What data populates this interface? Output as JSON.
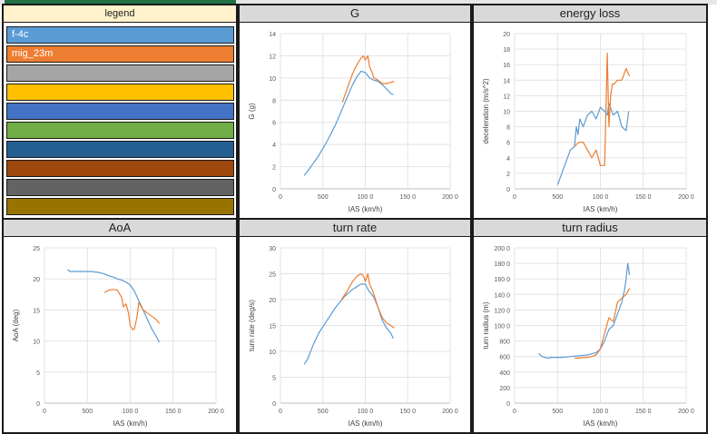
{
  "legend": {
    "title": "legend",
    "items": [
      {
        "label": "f-4c",
        "color": "#5b9bd5"
      },
      {
        "label": "mig_23m",
        "color": "#ed7d31"
      },
      {
        "label": "",
        "color": "#a5a5a5"
      },
      {
        "label": "",
        "color": "#ffc000"
      },
      {
        "label": "",
        "color": "#4472c4"
      },
      {
        "label": "",
        "color": "#70ad47"
      },
      {
        "label": "",
        "color": "#255e91"
      },
      {
        "label": "",
        "color": "#9e480e"
      },
      {
        "label": "",
        "color": "#636363"
      },
      {
        "label": "",
        "color": "#997300"
      }
    ]
  },
  "chart_data": [
    {
      "type": "line",
      "title": "G",
      "xlabel": "IAS (km/h)",
      "ylabel": "G (g)",
      "xlim": [
        0,
        2000
      ],
      "ylim": [
        0,
        14
      ],
      "xticks": [
        0,
        500,
        1000,
        1500,
        2000
      ],
      "xtick_labels": [
        "0",
        "500",
        "100 0",
        "150 0",
        "200 0"
      ],
      "yticks": [
        0,
        2,
        4,
        6,
        8,
        10,
        12,
        14
      ],
      "ytick_labels": [
        "0",
        "2",
        "4",
        "6",
        "8",
        "10",
        "12",
        "14"
      ],
      "grid": true,
      "series": [
        {
          "name": "f-4c",
          "color": "#5b9bd5",
          "x": [
            280,
            350,
            450,
            550,
            650,
            750,
            850,
            900,
            950,
            1000,
            1050,
            1100,
            1150,
            1200,
            1250,
            1300,
            1330
          ],
          "y": [
            1.2,
            1.9,
            3.0,
            4.3,
            5.8,
            7.6,
            9.4,
            10.1,
            10.6,
            10.5,
            10.0,
            9.8,
            9.7,
            9.4,
            9.0,
            8.6,
            8.5
          ]
        },
        {
          "name": "mig_23m",
          "color": "#ed7d31",
          "x": [
            730,
            780,
            850,
            900,
            950,
            980,
            1000,
            1030,
            1050,
            1080,
            1100,
            1150,
            1200,
            1250,
            1300,
            1340
          ],
          "y": [
            7.8,
            8.9,
            10.4,
            11.2,
            11.8,
            12.0,
            11.6,
            12.0,
            11.0,
            10.5,
            10.0,
            9.8,
            9.5,
            9.5,
            9.6,
            9.7
          ]
        }
      ]
    },
    {
      "type": "line",
      "title": "energy loss",
      "xlabel": "IAS (km/h)",
      "ylabel": "deceleration (m/s^2)",
      "xlim": [
        0,
        2000
      ],
      "ylim": [
        0,
        20
      ],
      "xticks": [
        0,
        500,
        1000,
        1500,
        2000
      ],
      "xtick_labels": [
        "0",
        "500",
        "100 0",
        "150 0",
        "200 0"
      ],
      "yticks": [
        0,
        2,
        4,
        6,
        8,
        10,
        12,
        14,
        16,
        18,
        20
      ],
      "ytick_labels": [
        "0",
        "2",
        "4",
        "6",
        "8",
        "10",
        "12",
        "14",
        "16",
        "18",
        "20"
      ],
      "grid": true,
      "series": [
        {
          "name": "f-4c",
          "color": "#5b9bd5",
          "x": [
            500,
            550,
            600,
            650,
            700,
            720,
            740,
            760,
            800,
            850,
            900,
            950,
            1000,
            1050,
            1080,
            1100,
            1150,
            1200,
            1250,
            1300,
            1330
          ],
          "y": [
            0.5,
            2.0,
            3.5,
            5.0,
            5.5,
            8.0,
            7.0,
            9.0,
            8.0,
            9.5,
            10.0,
            9.0,
            10.5,
            10.0,
            9.5,
            11.0,
            9.5,
            10.0,
            8.0,
            7.5,
            10.0
          ]
        },
        {
          "name": "mig_23m",
          "color": "#ed7d31",
          "x": [
            700,
            750,
            800,
            850,
            900,
            950,
            1000,
            1050,
            1080,
            1100,
            1120,
            1140,
            1160,
            1200,
            1250,
            1300,
            1340
          ],
          "y": [
            5.5,
            6.0,
            6.0,
            5.0,
            4.0,
            5.0,
            3.0,
            3.0,
            17.5,
            8.0,
            12.0,
            13.5,
            13.5,
            14.0,
            14.0,
            15.5,
            14.5
          ]
        }
      ]
    },
    {
      "type": "line",
      "title": "AoA",
      "xlabel": "IAS (km/h)",
      "ylabel": "AoA (deg)",
      "xlim": [
        0,
        2000
      ],
      "ylim": [
        0,
        25
      ],
      "xticks": [
        0,
        500,
        1000,
        1500,
        2000
      ],
      "xtick_labels": [
        "0",
        "500",
        "100 0",
        "150 0",
        "200 0"
      ],
      "yticks": [
        0,
        5,
        10,
        15,
        20,
        25
      ],
      "ytick_labels": [
        "0",
        "5",
        "10",
        "15",
        "20",
        "25"
      ],
      "grid": true,
      "series": [
        {
          "name": "f-4c",
          "color": "#5b9bd5",
          "x": [
            270,
            300,
            350,
            450,
            550,
            650,
            700,
            750,
            800,
            850,
            900,
            950,
            1000,
            1050,
            1100,
            1150,
            1200,
            1250,
            1300,
            1340
          ],
          "y": [
            21.5,
            21.2,
            21.2,
            21.2,
            21.2,
            21.0,
            20.8,
            20.5,
            20.3,
            20.0,
            19.8,
            19.5,
            19.0,
            18.0,
            16.5,
            15.0,
            13.5,
            12.0,
            10.8,
            9.8
          ]
        },
        {
          "name": "mig_23m",
          "color": "#ed7d31",
          "x": [
            700,
            750,
            800,
            850,
            900,
            920,
            950,
            980,
            1000,
            1030,
            1050,
            1080,
            1100,
            1150,
            1200,
            1250,
            1300,
            1340
          ],
          "y": [
            17.8,
            18.2,
            18.3,
            18.2,
            17.0,
            15.5,
            16.0,
            14.5,
            12.5,
            11.8,
            12.0,
            14.0,
            16.2,
            15.0,
            14.5,
            14.0,
            13.5,
            12.8
          ]
        }
      ]
    },
    {
      "type": "line",
      "title": "turn rate",
      "xlabel": "IAS (km/h)",
      "ylabel": "turn rate (deg/s)",
      "xlim": [
        0,
        2000
      ],
      "ylim": [
        0,
        30
      ],
      "xticks": [
        0,
        500,
        1000,
        1500,
        2000
      ],
      "xtick_labels": [
        "0",
        "500",
        "100 0",
        "150 0",
        "200 0"
      ],
      "yticks": [
        0,
        5,
        10,
        15,
        20,
        25,
        30
      ],
      "ytick_labels": [
        "0",
        "5",
        "10",
        "15",
        "20",
        "25",
        "30"
      ],
      "grid": true,
      "series": [
        {
          "name": "f-4c",
          "color": "#5b9bd5",
          "x": [
            280,
            320,
            380,
            450,
            550,
            650,
            750,
            850,
            900,
            950,
            1000,
            1030,
            1050,
            1100,
            1150,
            1200,
            1250,
            1300,
            1330
          ],
          "y": [
            7.5,
            8.5,
            11.0,
            13.5,
            16.0,
            18.5,
            20.5,
            22.0,
            22.5,
            23.0,
            23.0,
            22.0,
            21.5,
            20.5,
            18.5,
            16.0,
            14.5,
            13.5,
            12.5
          ]
        },
        {
          "name": "mig_23m",
          "color": "#ed7d31",
          "x": [
            720,
            780,
            850,
            900,
            950,
            980,
            1000,
            1030,
            1050,
            1080,
            1100,
            1150,
            1200,
            1250,
            1300,
            1340
          ],
          "y": [
            20.0,
            21.5,
            23.5,
            24.5,
            25.0,
            24.5,
            23.5,
            25.0,
            23.0,
            22.0,
            21.0,
            18.5,
            16.5,
            15.5,
            15.0,
            14.5
          ]
        }
      ]
    },
    {
      "type": "line",
      "title": "turn radius",
      "xlabel": "IAS (km/h)",
      "ylabel": "turn radius (m)",
      "xlim": [
        0,
        2000
      ],
      "ylim": [
        0,
        2000
      ],
      "xticks": [
        0,
        500,
        1000,
        1500,
        2000
      ],
      "xtick_labels": [
        "0",
        "500",
        "100 0",
        "150 0",
        "200 0"
      ],
      "yticks": [
        0,
        200,
        400,
        600,
        800,
        1000,
        1200,
        1400,
        1600,
        1800,
        2000
      ],
      "ytick_labels": [
        "0",
        "200",
        "400",
        "600",
        "800",
        "100 0",
        "120 0",
        "140 0",
        "160 0",
        "180 0",
        "200 0"
      ],
      "grid": true,
      "series": [
        {
          "name": "f-4c",
          "color": "#5b9bd5",
          "x": [
            280,
            320,
            380,
            450,
            550,
            650,
            750,
            850,
            950,
            1000,
            1050,
            1100,
            1150,
            1200,
            1250,
            1280,
            1300,
            1320,
            1340
          ],
          "y": [
            640,
            600,
            580,
            590,
            590,
            600,
            610,
            620,
            650,
            700,
            800,
            950,
            1000,
            1150,
            1300,
            1450,
            1600,
            1800,
            1650
          ]
        },
        {
          "name": "mig_23m",
          "color": "#ed7d31",
          "x": [
            700,
            750,
            800,
            850,
            900,
            950,
            1000,
            1050,
            1100,
            1150,
            1200,
            1250,
            1300,
            1340
          ],
          "y": [
            580,
            580,
            590,
            590,
            600,
            620,
            700,
            900,
            1100,
            1050,
            1300,
            1350,
            1400,
            1480
          ]
        }
      ]
    }
  ]
}
